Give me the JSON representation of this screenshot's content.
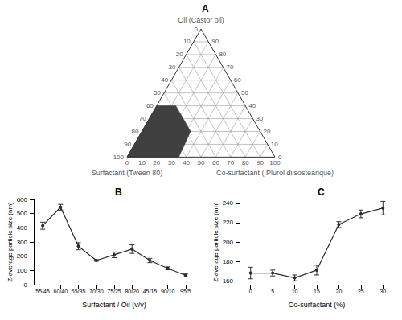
{
  "chart_data": [
    {
      "type": "ternary",
      "title": "A",
      "oil_label": "Oil (Castor oil)",
      "surfactant_label": "Surfactant (Tween 80)",
      "cosurfactant_label": "Co-surfactant ( Plurol diisostearique)",
      "range": [
        0,
        100
      ],
      "surfactant_ticks": [
        0,
        10,
        20,
        30,
        40,
        50,
        60,
        70,
        80,
        90,
        100
      ],
      "cosurfactant_ticks": [
        0,
        10,
        20,
        30,
        40,
        50,
        60,
        70,
        80,
        90,
        100
      ],
      "oil_ticks": [
        0,
        10,
        20,
        30,
        40,
        50,
        60,
        70,
        80,
        90
      ],
      "grid": true,
      "region": {
        "color": "#404040",
        "surfactant": [
          100,
          60,
          47,
          47,
          65
        ],
        "cosurfactant": [
          0,
          0,
          13,
          33,
          35
        ],
        "oil": [
          0,
          40,
          40,
          20,
          0
        ]
      }
    },
    {
      "type": "line",
      "title": "B",
      "xlabel": "Surfactant / Oil (v/v)",
      "ylabel": "Z-average particle size (nm)",
      "categories": [
        "55/45",
        "60/40",
        "65/35",
        "70/30",
        "75/25",
        "80/20",
        "45/15",
        "90/10",
        "95/5"
      ],
      "values": [
        415,
        545,
        270,
        170,
        210,
        250,
        170,
        115,
        65
      ],
      "errors": [
        25,
        20,
        25,
        5,
        20,
        30,
        15,
        10,
        10
      ],
      "color": "#2b2b2b",
      "marker": "circle",
      "line_style": "solid",
      "ylim": [
        0,
        600
      ],
      "yticks": [
        0,
        100,
        200,
        300,
        400,
        500,
        600
      ],
      "grid": false
    },
    {
      "type": "line",
      "title": "C",
      "xlabel": "Co-surfactant (%)",
      "ylabel": "Z-average particle size (nm)",
      "categories": [
        "0",
        "5",
        "10",
        "15",
        "20",
        "25",
        "30"
      ],
      "values": [
        168,
        168,
        163,
        171,
        218,
        229,
        235
      ],
      "errors": [
        6,
        3,
        3,
        5,
        3,
        4,
        7
      ],
      "color": "#2b2b2b",
      "marker": "circle",
      "line_style": "solid",
      "ylim": [
        156,
        244
      ],
      "yticks": [
        160,
        180,
        200,
        220,
        240
      ],
      "grid": false
    }
  ]
}
